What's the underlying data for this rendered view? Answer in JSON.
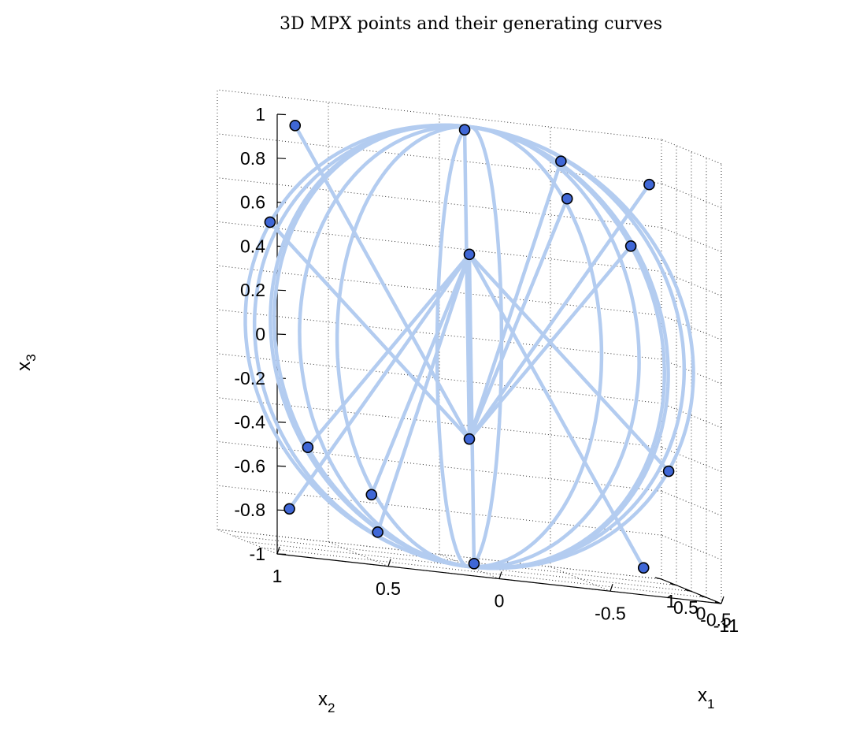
{
  "chart_data": {
    "type": "scatter",
    "projection": "3d",
    "title": "3D MPX points and their generating curves",
    "xlabel": "x_1",
    "ylabel": "x_2",
    "zlabel": "x_3",
    "x_label_main": "x",
    "x_label_sub": "1",
    "y_label_main": "x",
    "y_label_sub": "2",
    "z_label_main": "x",
    "z_label_sub": "3",
    "xlim": [
      -1,
      1
    ],
    "ylim": [
      -1,
      1
    ],
    "zlim": [
      -1,
      1
    ],
    "grid": true,
    "x_ticks": [
      "-1",
      "-0.5",
      "0",
      "0.5",
      "1"
    ],
    "y_ticks": [
      "1",
      "0.5",
      "0",
      "-0.5",
      "-1"
    ],
    "z_ticks": [
      "1",
      "0.8",
      "0.6",
      "0.4",
      "0.2",
      "0",
      "-0.2",
      "-0.4",
      "-0.6",
      "-0.8",
      "-1"
    ],
    "curve_color": "#b3ccf0",
    "point_color": "#3f67d6",
    "points": [
      {
        "x": -0.14,
        "y": 0.04,
        "z": 0.99
      },
      {
        "x": 0.14,
        "y": -0.04,
        "z": -0.99
      },
      {
        "x": -0.56,
        "y": 0.86,
        "z": 0.94
      },
      {
        "x": 0.56,
        "y": -0.86,
        "z": -0.94
      },
      {
        "x": 0.5,
        "y": -0.48,
        "z": 0.87
      },
      {
        "x": -0.5,
        "y": 0.48,
        "z": -0.87
      },
      {
        "x": -0.52,
        "y": -0.74,
        "z": 0.85
      },
      {
        "x": 0.52,
        "y": 0.74,
        "z": -0.85
      },
      {
        "x": 0.13,
        "y": 0.88,
        "z": 0.46
      },
      {
        "x": -0.13,
        "y": -0.88,
        "z": -0.46
      },
      {
        "x": 0.07,
        "y": -0.45,
        "z": 0.72
      },
      {
        "x": -0.07,
        "y": 0.45,
        "z": -0.72
      },
      {
        "x": 0.5,
        "y": 0.66,
        "z": -0.56
      },
      {
        "x": -0.5,
        "y": -0.66,
        "z": 0.56
      },
      {
        "x": 0,
        "y": 0,
        "z": 0.42
      },
      {
        "x": 0,
        "y": 0,
        "z": -0.42
      }
    ]
  }
}
